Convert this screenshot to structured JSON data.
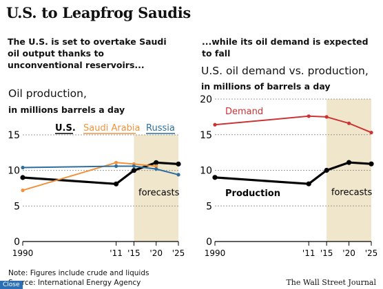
{
  "headline": "U.S. to Leapfrog Saudis",
  "left_subtitle": "The U.S. is set to overtake Saudi oil output thanks to unconventional reservoirs...",
  "right_subtitle": "...while its oil demand is expected to fall",
  "footer": {
    "note": "Note: Figures include crude and liquids",
    "source": "Source: International Energy Agency",
    "credit": "The Wall Street Journal"
  },
  "close_label": "Close",
  "colors": {
    "us": "#000000",
    "saudi": "#f0923c",
    "russia": "#2c6e9e",
    "demand": "#cc3333",
    "forecast_band": "#efe6cc",
    "grid": "#999999"
  },
  "chart_data": [
    {
      "type": "line",
      "title": "Oil production,",
      "ylabel": "in millions barrels a day",
      "x": [
        1990,
        2011,
        2015,
        2020,
        2025
      ],
      "x_tick_labels": [
        "1990",
        "'11",
        "'15",
        "'20",
        "'25"
      ],
      "ylim": [
        0,
        15
      ],
      "y_ticks": [
        0,
        5,
        10,
        15
      ],
      "forecast_range": [
        2015,
        2025
      ],
      "forecast_label": "forecasts",
      "legend_placement": "top",
      "series": [
        {
          "name": "U.S.",
          "values": [
            9,
            8.1,
            10,
            11.1,
            10.9
          ]
        },
        {
          "name": "Saudi Arabia",
          "values": [
            7.2,
            11.1,
            10.9,
            10.6,
            null
          ]
        },
        {
          "name": "Russia",
          "values": [
            10.4,
            10.6,
            10.6,
            10.2,
            9.4
          ]
        }
      ]
    },
    {
      "type": "line",
      "title": "U.S. oil demand vs. production,",
      "ylabel": "in millions of barrels a day",
      "x": [
        1990,
        2011,
        2015,
        2020,
        2025
      ],
      "x_tick_labels": [
        "1990",
        "'11",
        "'15",
        "'20",
        "'25"
      ],
      "ylim": [
        0,
        20
      ],
      "y_ticks": [
        0,
        5,
        10,
        15,
        20
      ],
      "forecast_range": [
        2015,
        2025
      ],
      "forecast_label": "forecasts",
      "series": [
        {
          "name": "Demand",
          "values": [
            16.4,
            17.6,
            17.5,
            16.6,
            15.3
          ]
        },
        {
          "name": "Production",
          "values": [
            9,
            8.1,
            10,
            11.1,
            10.9
          ]
        }
      ]
    }
  ]
}
